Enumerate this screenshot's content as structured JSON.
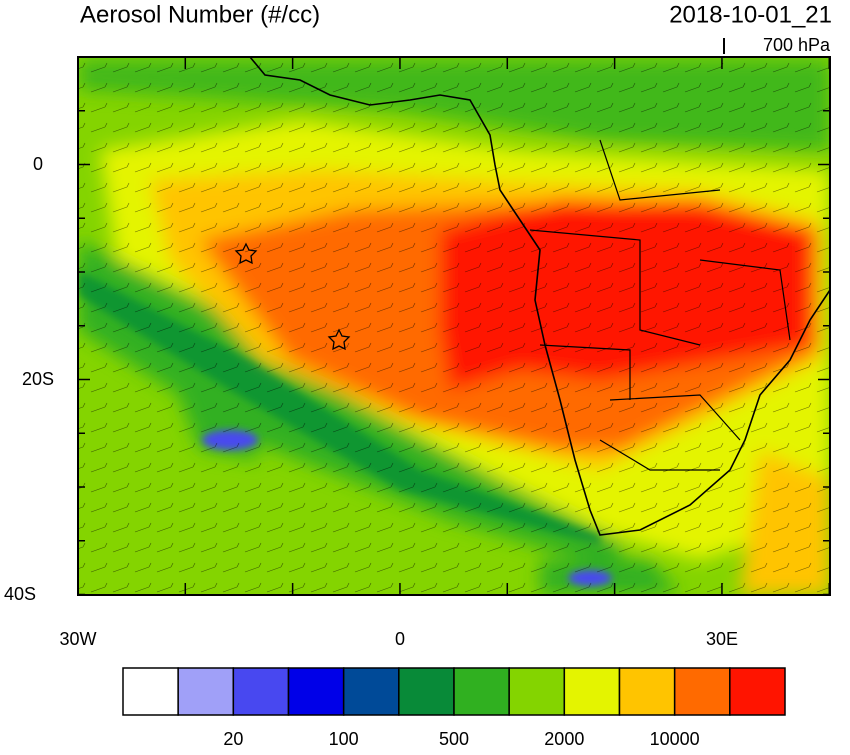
{
  "header": {
    "title": "Aerosol Number (#/cc)",
    "time": "2018-10-01_21",
    "level": "700 hPa"
  },
  "map": {
    "lat_labels": [
      "0",
      "20S",
      "40S"
    ],
    "lon_labels": [
      "30W",
      "0",
      "30E"
    ]
  },
  "colorbar": {
    "colors": [
      "#ffffff",
      "#a0a0f8",
      "#4848f0",
      "#0000e8",
      "#004a98",
      "#088a38",
      "#30b020",
      "#84d400",
      "#e4f400",
      "#ffc400",
      "#ff6a00",
      "#ff1400"
    ],
    "labels": [
      20,
      100,
      500,
      2000,
      10000
    ]
  }
}
